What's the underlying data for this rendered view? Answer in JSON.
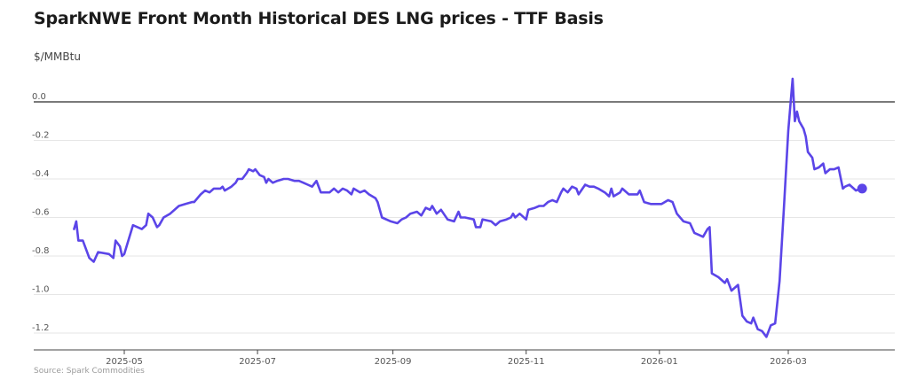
{
  "title": "SparkNWE Front Month Historical DES LNG prices - TTF Basis",
  "y_unit_label": "$/MMBtu",
  "source": "Source: Spark Commodities",
  "colors": {
    "series": "#5b45e8",
    "zero_line": "#7a7a7a",
    "grid": "#e6e6e6",
    "axis": "#444444"
  },
  "chart_data": {
    "type": "line",
    "title": "SparkNWE Front Month Historical DES LNG prices - TTF Basis",
    "ylabel": "$/MMBtu",
    "xlabel": "",
    "ylim": [
      -1.25,
      0.15
    ],
    "xlim": [
      "2025-04-02",
      "2026-04-22"
    ],
    "grid": true,
    "y_ticks": [
      {
        "value": 0.0,
        "label": "0.0"
      },
      {
        "value": -0.2,
        "label": "-0.2"
      },
      {
        "value": -0.4,
        "label": "-0.4"
      },
      {
        "value": -0.6,
        "label": "-0.6"
      },
      {
        "value": -0.8,
        "label": "-0.8"
      },
      {
        "value": -1.0,
        "label": "-1.0"
      },
      {
        "value": -1.2,
        "label": "-1.2"
      }
    ],
    "x_ticks": [
      {
        "value": "2025-05-01",
        "label": "2025-05"
      },
      {
        "value": "2025-07-01",
        "label": "2025-07"
      },
      {
        "value": "2025-09-01",
        "label": "2025-09"
      },
      {
        "value": "2025-11-01",
        "label": "2025-11"
      },
      {
        "value": "2026-01-01",
        "label": "2026-01"
      },
      {
        "value": "2026-03-01",
        "label": "2026-03"
      }
    ],
    "series": [
      {
        "color": "#5b45e8",
        "points": [
          [
            "2025-04-08",
            -0.66
          ],
          [
            "2025-04-09",
            -0.62
          ],
          [
            "2025-04-10",
            -0.72
          ],
          [
            "2025-04-12",
            -0.72
          ],
          [
            "2025-04-15",
            -0.81
          ],
          [
            "2025-04-17",
            -0.83
          ],
          [
            "2025-04-19",
            -0.78
          ],
          [
            "2025-04-24",
            -0.79
          ],
          [
            "2025-04-26",
            -0.81
          ],
          [
            "2025-04-27",
            -0.72
          ],
          [
            "2025-04-29",
            -0.75
          ],
          [
            "2025-04-30",
            -0.8
          ],
          [
            "2025-05-01",
            -0.79
          ],
          [
            "2025-05-05",
            -0.64
          ],
          [
            "2025-05-09",
            -0.66
          ],
          [
            "2025-05-11",
            -0.64
          ],
          [
            "2025-05-12",
            -0.58
          ],
          [
            "2025-05-14",
            -0.6
          ],
          [
            "2025-05-16",
            -0.65
          ],
          [
            "2025-05-17",
            -0.64
          ],
          [
            "2025-05-19",
            -0.6
          ],
          [
            "2025-05-22",
            -0.58
          ],
          [
            "2025-05-26",
            -0.54
          ],
          [
            "2025-05-29",
            -0.53
          ],
          [
            "2025-06-01",
            -0.52
          ],
          [
            "2025-06-02",
            -0.52
          ],
          [
            "2025-06-05",
            -0.48
          ],
          [
            "2025-06-07",
            -0.46
          ],
          [
            "2025-06-09",
            -0.47
          ],
          [
            "2025-06-11",
            -0.45
          ],
          [
            "2025-06-14",
            -0.45
          ],
          [
            "2025-06-15",
            -0.44
          ],
          [
            "2025-06-16",
            -0.46
          ],
          [
            "2025-06-19",
            -0.44
          ],
          [
            "2025-06-21",
            -0.42
          ],
          [
            "2025-06-22",
            -0.4
          ],
          [
            "2025-06-24",
            -0.4
          ],
          [
            "2025-06-26",
            -0.37
          ],
          [
            "2025-06-27",
            -0.35
          ],
          [
            "2025-06-29",
            -0.36
          ],
          [
            "2025-06-30",
            -0.35
          ],
          [
            "2025-07-02",
            -0.38
          ],
          [
            "2025-07-04",
            -0.39
          ],
          [
            "2025-07-05",
            -0.42
          ],
          [
            "2025-07-06",
            -0.4
          ],
          [
            "2025-07-08",
            -0.42
          ],
          [
            "2025-07-10",
            -0.41
          ],
          [
            "2025-07-13",
            -0.4
          ],
          [
            "2025-07-15",
            -0.4
          ],
          [
            "2025-07-18",
            -0.41
          ],
          [
            "2025-07-20",
            -0.41
          ],
          [
            "2025-07-22",
            -0.42
          ],
          [
            "2025-07-24",
            -0.43
          ],
          [
            "2025-07-26",
            -0.44
          ],
          [
            "2025-07-28",
            -0.41
          ],
          [
            "2025-07-30",
            -0.47
          ],
          [
            "2025-08-03",
            -0.47
          ],
          [
            "2025-08-05",
            -0.45
          ],
          [
            "2025-08-07",
            -0.47
          ],
          [
            "2025-08-09",
            -0.45
          ],
          [
            "2025-08-11",
            -0.46
          ],
          [
            "2025-08-13",
            -0.48
          ],
          [
            "2025-08-14",
            -0.45
          ],
          [
            "2025-08-17",
            -0.47
          ],
          [
            "2025-08-19",
            -0.46
          ],
          [
            "2025-08-21",
            -0.48
          ],
          [
            "2025-08-24",
            -0.5
          ],
          [
            "2025-08-25",
            -0.52
          ],
          [
            "2025-08-27",
            -0.6
          ],
          [
            "2025-08-31",
            -0.62
          ],
          [
            "2025-09-03",
            -0.63
          ],
          [
            "2025-09-05",
            -0.61
          ],
          [
            "2025-09-07",
            -0.6
          ],
          [
            "2025-09-09",
            -0.58
          ],
          [
            "2025-09-12",
            -0.57
          ],
          [
            "2025-09-14",
            -0.59
          ],
          [
            "2025-09-16",
            -0.55
          ],
          [
            "2025-09-18",
            -0.56
          ],
          [
            "2025-09-19",
            -0.54
          ],
          [
            "2025-09-21",
            -0.58
          ],
          [
            "2025-09-23",
            -0.56
          ],
          [
            "2025-09-26",
            -0.61
          ],
          [
            "2025-09-29",
            -0.62
          ],
          [
            "2025-10-01",
            -0.57
          ],
          [
            "2025-10-02",
            -0.6
          ],
          [
            "2025-10-04",
            -0.6
          ],
          [
            "2025-10-08",
            -0.61
          ],
          [
            "2025-10-09",
            -0.65
          ],
          [
            "2025-10-11",
            -0.65
          ],
          [
            "2025-10-12",
            -0.61
          ],
          [
            "2025-10-16",
            -0.62
          ],
          [
            "2025-10-18",
            -0.64
          ],
          [
            "2025-10-20",
            -0.62
          ],
          [
            "2025-10-23",
            -0.61
          ],
          [
            "2025-10-25",
            -0.6
          ],
          [
            "2025-10-26",
            -0.58
          ],
          [
            "2025-10-27",
            -0.6
          ],
          [
            "2025-10-29",
            -0.58
          ],
          [
            "2025-11-01",
            -0.61
          ],
          [
            "2025-11-02",
            -0.56
          ],
          [
            "2025-11-05",
            -0.55
          ],
          [
            "2025-11-07",
            -0.54
          ],
          [
            "2025-11-09",
            -0.54
          ],
          [
            "2025-11-11",
            -0.52
          ],
          [
            "2025-11-13",
            -0.51
          ],
          [
            "2025-11-15",
            -0.52
          ],
          [
            "2025-11-17",
            -0.47
          ],
          [
            "2025-11-18",
            -0.45
          ],
          [
            "2025-11-20",
            -0.47
          ],
          [
            "2025-11-22",
            -0.44
          ],
          [
            "2025-11-24",
            -0.45
          ],
          [
            "2025-11-25",
            -0.48
          ],
          [
            "2025-11-28",
            -0.43
          ],
          [
            "2025-11-30",
            -0.44
          ],
          [
            "2025-12-02",
            -0.44
          ],
          [
            "2025-12-04",
            -0.45
          ],
          [
            "2025-12-07",
            -0.47
          ],
          [
            "2025-12-09",
            -0.49
          ],
          [
            "2025-12-10",
            -0.45
          ],
          [
            "2025-12-11",
            -0.49
          ],
          [
            "2025-12-14",
            -0.47
          ],
          [
            "2025-12-15",
            -0.45
          ],
          [
            "2025-12-18",
            -0.48
          ],
          [
            "2025-12-22",
            -0.48
          ],
          [
            "2025-12-23",
            -0.46
          ],
          [
            "2025-12-25",
            -0.52
          ],
          [
            "2025-12-28",
            -0.53
          ],
          [
            "2026-01-02",
            -0.53
          ],
          [
            "2026-01-05",
            -0.51
          ],
          [
            "2026-01-07",
            -0.52
          ],
          [
            "2026-01-09",
            -0.58
          ],
          [
            "2026-01-12",
            -0.62
          ],
          [
            "2026-01-15",
            -0.63
          ],
          [
            "2026-01-17",
            -0.68
          ],
          [
            "2026-01-19",
            -0.69
          ],
          [
            "2026-01-21",
            -0.7
          ],
          [
            "2026-01-23",
            -0.66
          ],
          [
            "2026-01-24",
            -0.65
          ],
          [
            "2026-01-25",
            -0.89
          ],
          [
            "2026-01-28",
            -0.91
          ],
          [
            "2026-01-31",
            -0.94
          ],
          [
            "2026-02-01",
            -0.92
          ],
          [
            "2026-02-03",
            -0.98
          ],
          [
            "2026-02-06",
            -0.95
          ],
          [
            "2026-02-08",
            -1.11
          ],
          [
            "2026-02-10",
            -1.14
          ],
          [
            "2026-02-12",
            -1.15
          ],
          [
            "2026-02-13",
            -1.12
          ],
          [
            "2026-02-15",
            -1.18
          ],
          [
            "2026-02-17",
            -1.19
          ],
          [
            "2026-02-19",
            -1.22
          ],
          [
            "2026-02-21",
            -1.16
          ],
          [
            "2026-02-23",
            -1.15
          ],
          [
            "2026-02-25",
            -0.93
          ],
          [
            "2026-02-27",
            -0.55
          ],
          [
            "2026-03-01",
            -0.15
          ],
          [
            "2026-03-03",
            0.12
          ],
          [
            "2026-03-04",
            -0.1
          ],
          [
            "2026-03-05",
            -0.05
          ],
          [
            "2026-03-06",
            -0.1
          ],
          [
            "2026-03-08",
            -0.14
          ],
          [
            "2026-03-09",
            -0.18
          ],
          [
            "2026-03-10",
            -0.26
          ],
          [
            "2026-03-12",
            -0.29
          ],
          [
            "2026-03-13",
            -0.35
          ],
          [
            "2026-03-15",
            -0.34
          ],
          [
            "2026-03-17",
            -0.32
          ],
          [
            "2026-03-18",
            -0.37
          ],
          [
            "2026-03-20",
            -0.35
          ],
          [
            "2026-03-22",
            -0.35
          ],
          [
            "2026-03-24",
            -0.34
          ],
          [
            "2026-03-26",
            -0.45
          ],
          [
            "2026-03-27",
            -0.44
          ],
          [
            "2026-03-29",
            -0.43
          ],
          [
            "2026-04-01",
            -0.46
          ],
          [
            "2026-04-03",
            -0.45
          ]
        ]
      }
    ]
  }
}
